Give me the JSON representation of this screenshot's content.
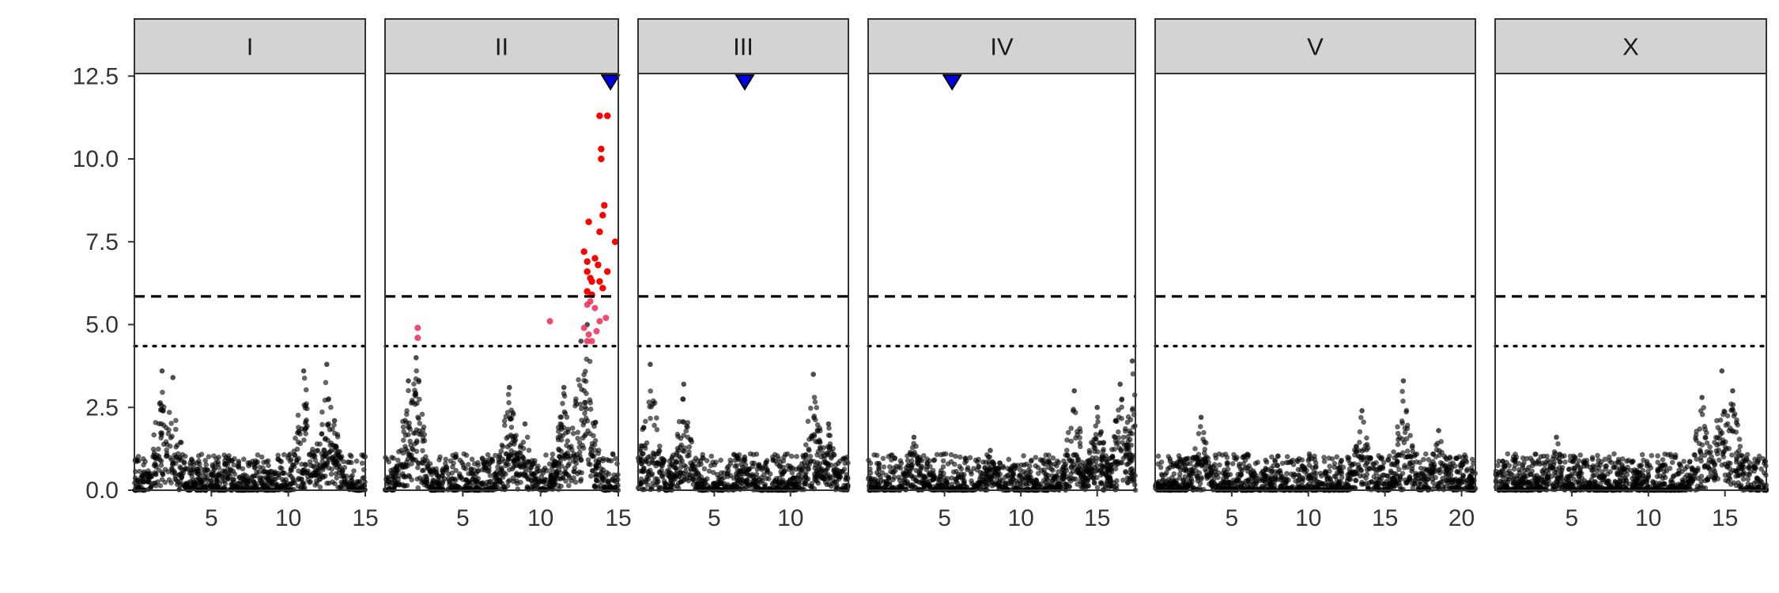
{
  "chart_data": {
    "type": "scatter",
    "title": "",
    "xlabel": "",
    "ylabel": "",
    "ylim": [
      0,
      12.6
    ],
    "yticks": [
      0.0,
      2.5,
      5.0,
      7.5,
      10.0,
      12.5
    ],
    "ytick_labels": [
      "0.0",
      "2.5",
      "5.0",
      "7.5",
      "10.0",
      "12.5"
    ],
    "thresholds": {
      "dashed": 5.85,
      "dotted": 4.35
    },
    "colors": {
      "background_points": "#000000",
      "significant_points": "#ff0000",
      "suggestive_points": "#ee2a55",
      "marker": "#0000dd",
      "strip_fill": "#d3d3d3"
    },
    "facets": [
      {
        "label": "I",
        "xlim": [
          0,
          15
        ],
        "xticks": [
          5,
          10,
          15
        ],
        "xtick_labels": [
          "5",
          "10",
          "15"
        ],
        "markers": [],
        "peaks": [
          [
            1.8,
            3.6
          ],
          [
            2.5,
            3.4
          ],
          [
            11.0,
            3.6
          ],
          [
            12.5,
            3.8
          ],
          [
            13.0,
            2.1
          ]
        ],
        "red_points": [],
        "pink_points": []
      },
      {
        "label": "II",
        "xlim": [
          0,
          15
        ],
        "xticks": [
          5,
          10,
          15
        ],
        "xtick_labels": [
          "5",
          "10",
          "15"
        ],
        "markers": [
          14.5
        ],
        "peaks": [
          [
            1.5,
            3.3
          ],
          [
            2.0,
            4.0
          ],
          [
            8.0,
            3.1
          ],
          [
            9.0,
            2.0
          ],
          [
            11.5,
            3.1
          ],
          [
            12.6,
            4.5
          ],
          [
            13.0,
            5.0
          ]
        ],
        "red_points": [
          [
            13.8,
            11.3
          ],
          [
            14.3,
            11.3
          ],
          [
            13.9,
            10.3
          ],
          [
            13.9,
            10.0
          ],
          [
            14.1,
            8.6
          ],
          [
            14.0,
            8.3
          ],
          [
            13.1,
            8.1
          ],
          [
            13.8,
            7.8
          ],
          [
            14.8,
            7.5
          ],
          [
            12.8,
            7.2
          ],
          [
            13.5,
            7.0
          ],
          [
            13.0,
            6.9
          ],
          [
            13.7,
            6.8
          ],
          [
            13.0,
            6.6
          ],
          [
            14.3,
            6.6
          ],
          [
            13.2,
            6.4
          ],
          [
            13.3,
            6.3
          ],
          [
            13.8,
            6.3
          ],
          [
            14.0,
            6.1
          ],
          [
            13.0,
            6.0
          ],
          [
            13.3,
            5.9
          ]
        ],
        "pink_points": [
          [
            2.1,
            4.9
          ],
          [
            2.1,
            4.6
          ],
          [
            10.6,
            5.1
          ],
          [
            13.0,
            5.6
          ],
          [
            13.2,
            5.7
          ],
          [
            13.5,
            5.5
          ],
          [
            13.8,
            5.1
          ],
          [
            14.2,
            5.2
          ],
          [
            12.8,
            4.9
          ],
          [
            13.1,
            4.7
          ],
          [
            13.0,
            4.5
          ],
          [
            13.3,
            4.5
          ],
          [
            13.6,
            4.8
          ]
        ]
      },
      {
        "label": "III",
        "xlim": [
          0,
          13.8
        ],
        "xticks": [
          5,
          10
        ],
        "xtick_labels": [
          "5",
          "10"
        ],
        "markers": [
          7.0
        ],
        "peaks": [
          [
            0.8,
            3.8
          ],
          [
            3.0,
            3.2
          ],
          [
            7.0,
            1.0
          ],
          [
            11.5,
            3.5
          ],
          [
            12.5,
            2.0
          ]
        ],
        "red_points": [],
        "pink_points": []
      },
      {
        "label": "IV",
        "xlim": [
          0,
          17.5
        ],
        "xticks": [
          5,
          10,
          15
        ],
        "xtick_labels": [
          "5",
          "10",
          "15"
        ],
        "markers": [
          5.5
        ],
        "peaks": [
          [
            3.0,
            1.6
          ],
          [
            8.0,
            1.2
          ],
          [
            13.5,
            3.0
          ],
          [
            15.0,
            2.5
          ],
          [
            16.5,
            3.2
          ],
          [
            17.3,
            3.9
          ]
        ],
        "red_points": [],
        "pink_points": []
      },
      {
        "label": "V",
        "xlim": [
          0,
          20.9
        ],
        "xticks": [
          5,
          10,
          15,
          20
        ],
        "xtick_labels": [
          "5",
          "10",
          "15",
          "20"
        ],
        "markers": [],
        "peaks": [
          [
            3.0,
            2.2
          ],
          [
            13.5,
            2.4
          ],
          [
            16.2,
            3.3
          ],
          [
            18.5,
            1.8
          ]
        ],
        "red_points": [],
        "pink_points": []
      },
      {
        "label": "X",
        "xlim": [
          0,
          17.7
        ],
        "xticks": [
          5,
          10,
          15
        ],
        "xtick_labels": [
          "5",
          "10",
          "15"
        ],
        "markers": [],
        "peaks": [
          [
            4.0,
            1.6
          ],
          [
            13.5,
            2.8
          ],
          [
            14.8,
            3.6
          ],
          [
            15.5,
            3.0
          ]
        ],
        "red_points": [],
        "pink_points": []
      }
    ]
  }
}
